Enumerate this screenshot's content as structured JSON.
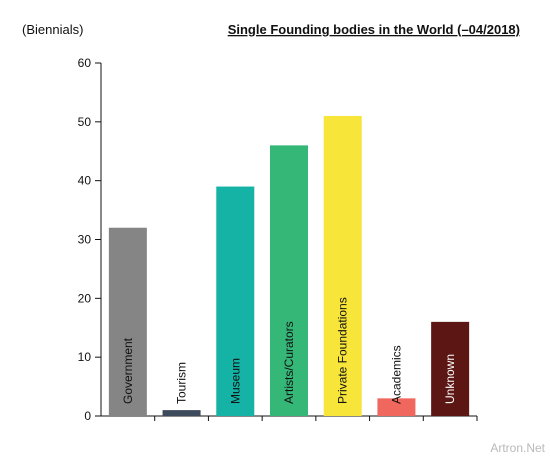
{
  "chart_data": {
    "type": "bar",
    "title": "Single Founding bodies in the World (–04/2018)",
    "ylabel": "(Biennials)",
    "xlabel": "",
    "ylim": [
      0,
      60
    ],
    "yticks": [
      0,
      10,
      20,
      30,
      40,
      50,
      60
    ],
    "grid": false,
    "categories": [
      "Government",
      "Tourism",
      "Museum",
      "Artists/Curators",
      "Private Foundations",
      "Academics",
      "Unknown"
    ],
    "values": [
      32,
      1,
      39,
      46,
      51,
      3,
      16
    ],
    "colors": [
      "#858585",
      "#3d4a5c",
      "#14b3a6",
      "#35b877",
      "#f7e53a",
      "#f0675d",
      "#5c1614"
    ],
    "label_colors": [
      "#111111",
      "#111111",
      "#111111",
      "#111111",
      "#111111",
      "#111111",
      "#ffffff"
    ]
  },
  "watermark": "Artron.Net"
}
